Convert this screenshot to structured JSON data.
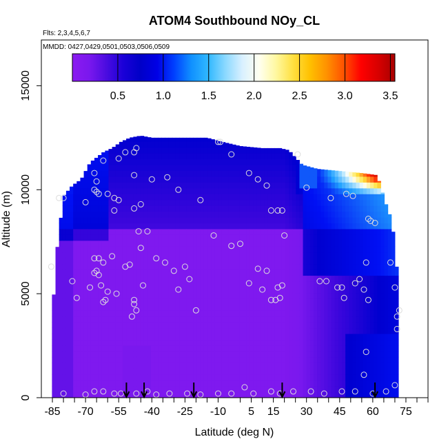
{
  "chart_data": {
    "type": "heatmap",
    "title": "ATOM4 Southbound NOy_CL",
    "subtitle_flights": "Flts: 2,3,4,5,6,7",
    "subtitle_dates": "MMDD: 0427,0429,0501,0503,0506,0509",
    "xlabel": "Latitude (deg N)",
    "ylabel": "Altitude (m)",
    "xlim": [
      -90,
      85
    ],
    "ylim": [
      0,
      17200
    ],
    "x_ticks": [
      -85,
      -70,
      -55,
      -40,
      -25,
      -10,
      5,
      15,
      30,
      45,
      60,
      75
    ],
    "x_tick_labels": [
      "-85",
      "-70",
      "-55",
      "-40",
      "-25",
      "-10",
      "5",
      "15",
      "30",
      "45",
      "60",
      "75"
    ],
    "x_minor_ticks": [
      -80,
      -75,
      -65,
      -60,
      -50,
      -45,
      -35,
      -30,
      -20,
      -15,
      0,
      10,
      20,
      25,
      35,
      40,
      50,
      55,
      65,
      70,
      80,
      85
    ],
    "y_ticks": [
      0,
      5000,
      10000,
      15000
    ],
    "y_tick_labels": [
      "0",
      "5000",
      "10000",
      "15000"
    ],
    "colorbar": {
      "range": [
        0.0,
        3.55
      ],
      "ticks": [
        0.5,
        1.0,
        1.5,
        2.0,
        2.5,
        3.0,
        3.5
      ],
      "tick_labels": [
        "0.5",
        "1.0",
        "1.5",
        "2.0",
        "2.5",
        "3.0",
        "3.5"
      ],
      "colors": [
        "#8B1AF0",
        "#7A18EE",
        "#4B0CE0",
        "#1A00D8",
        "#0000C8",
        "#0000E6",
        "#0040FF",
        "#1090FF",
        "#30B8FF",
        "#8AD8FF",
        "#D8F0FF",
        "#FFFFF0",
        "#FFF8A0",
        "#FFE040",
        "#FFC000",
        "#FF9000",
        "#FF5000",
        "#FF0000",
        "#D80000",
        "#A80000"
      ]
    },
    "field_color_stops": {
      "values": [
        0.0,
        0.3,
        0.5,
        0.7,
        1.0,
        1.4,
        1.8,
        2.0,
        2.4,
        3.0,
        3.55
      ],
      "colors": [
        "#8B1AF0",
        "#7A18EE",
        "#3A06DC",
        "#0000D0",
        "#0010F4",
        "#20A0FF",
        "#B0E4FF",
        "#FFFFF8",
        "#FFE43C",
        "#FF2000",
        "#B00000"
      ]
    },
    "value_field_description_omitted": "",
    "domain_profile": {
      "lat": [
        -86,
        -84,
        -80,
        -76,
        -72,
        -68,
        -62,
        -58,
        -54,
        -50,
        -45,
        -40,
        -30,
        -20,
        -15,
        -8,
        0,
        10,
        18,
        22,
        28,
        35,
        45,
        55,
        62,
        66,
        68,
        70,
        71,
        72
      ],
      "top_alt": [
        0,
        6200,
        9700,
        10200,
        10500,
        11300,
        11800,
        12000,
        12300,
        12500,
        12600,
        12500,
        12500,
        12500,
        12500,
        12300,
        12100,
        12000,
        12000,
        11900,
        11200,
        11000,
        10900,
        10800,
        10700,
        9300,
        8700,
        7500,
        6000,
        4300
      ]
    },
    "arrows_lat": [
      -51.5,
      -43.5,
      -21,
      19,
      61
    ],
    "data_points": [
      [
        -85.5,
        6300
      ],
      [
        -82,
        9600
      ],
      [
        -80,
        9600
      ],
      [
        -76,
        5600
      ],
      [
        -74,
        4800
      ],
      [
        -70,
        9400
      ],
      [
        -68,
        5300
      ],
      [
        -66,
        6700
      ],
      [
        -65,
        6100
      ],
      [
        -64,
        5900
      ],
      [
        -63,
        5400
      ],
      [
        -62,
        4600
      ],
      [
        -66,
        6000
      ],
      [
        -64,
        6700
      ],
      [
        -62,
        6500
      ],
      [
        -60,
        5100
      ],
      [
        -61,
        4700
      ],
      [
        -58,
        6800
      ],
      [
        -56,
        5000
      ],
      [
        -52,
        6300
      ],
      [
        -50,
        6400
      ],
      [
        -48,
        4700
      ],
      [
        -47,
        4200
      ],
      [
        -48,
        4500
      ],
      [
        -49,
        3900
      ],
      [
        -44,
        5400
      ],
      [
        -38,
        6700
      ],
      [
        -34,
        6500
      ],
      [
        -30,
        6100
      ],
      [
        -28,
        5200
      ],
      [
        -25,
        6300
      ],
      [
        -23,
        5700
      ],
      [
        -20,
        4200
      ],
      [
        -65,
        9900
      ],
      [
        -66,
        10000
      ],
      [
        -64,
        9800
      ],
      [
        -60,
        9800
      ],
      [
        -57,
        9600
      ],
      [
        -55,
        9500
      ],
      [
        -57,
        9000
      ],
      [
        -48,
        9100
      ],
      [
        -45,
        9300
      ],
      [
        -46,
        8000
      ],
      [
        -42,
        8000
      ],
      [
        -45,
        7200
      ],
      [
        -40,
        10500
      ],
      [
        -33,
        10600
      ],
      [
        -28,
        10000
      ],
      [
        -18,
        9500
      ],
      [
        -12,
        7800
      ],
      [
        -4,
        7300
      ],
      [
        0,
        7400
      ],
      [
        -4,
        11700
      ],
      [
        4,
        10800
      ],
      [
        -52,
        11800
      ],
      [
        -48,
        11800
      ],
      [
        -47,
        12000
      ],
      [
        -62,
        11400
      ],
      [
        -55,
        11500
      ],
      [
        -48,
        10700
      ],
      [
        -65,
        10400
      ],
      [
        -66,
        10800
      ],
      [
        -10,
        12300
      ],
      [
        -9,
        12300
      ],
      [
        8,
        6200
      ],
      [
        4,
        5500
      ],
      [
        10,
        5200
      ],
      [
        12,
        6100
      ],
      [
        14,
        4700
      ],
      [
        16,
        4700
      ],
      [
        17,
        5300
      ],
      [
        18,
        4800
      ],
      [
        19,
        5400
      ],
      [
        8,
        10500
      ],
      [
        14,
        9000
      ],
      [
        17,
        9000
      ],
      [
        19,
        9000
      ],
      [
        20,
        7800
      ],
      [
        12,
        10200
      ],
      [
        26,
        11700
      ],
      [
        30,
        10100
      ],
      [
        39,
        5600
      ],
      [
        36,
        5600
      ],
      [
        44,
        5300
      ],
      [
        46,
        5300
      ],
      [
        47,
        4800
      ],
      [
        52,
        5500
      ],
      [
        54,
        5700
      ],
      [
        56,
        5200
      ],
      [
        57,
        6500
      ],
      [
        58,
        4700
      ],
      [
        41,
        9600
      ],
      [
        48,
        9800
      ],
      [
        51,
        9700
      ],
      [
        58,
        8600
      ],
      [
        59,
        8500
      ],
      [
        61,
        8400
      ],
      [
        68,
        6500
      ],
      [
        70,
        5300
      ],
      [
        71,
        3900
      ],
      [
        71,
        3300
      ],
      [
        72,
        4200
      ],
      [
        57,
        2200
      ],
      [
        56,
        1100
      ],
      [
        70,
        600
      ],
      [
        -80,
        200
      ],
      [
        -70,
        150
      ],
      [
        -66,
        300
      ],
      [
        -62,
        300
      ],
      [
        -57,
        200
      ],
      [
        -54,
        200
      ],
      [
        -47,
        200
      ],
      [
        -42,
        300
      ],
      [
        -38,
        150
      ],
      [
        -32,
        200
      ],
      [
        -24,
        200
      ],
      [
        -18,
        150
      ],
      [
        -10,
        200
      ],
      [
        -4,
        200
      ],
      [
        2,
        500
      ],
      [
        6,
        200
      ],
      [
        14,
        300
      ],
      [
        18,
        200
      ],
      [
        24,
        300
      ],
      [
        32,
        300
      ],
      [
        38,
        200
      ],
      [
        46,
        300
      ],
      [
        52,
        300
      ],
      [
        60,
        200
      ],
      [
        66,
        300
      ]
    ]
  }
}
